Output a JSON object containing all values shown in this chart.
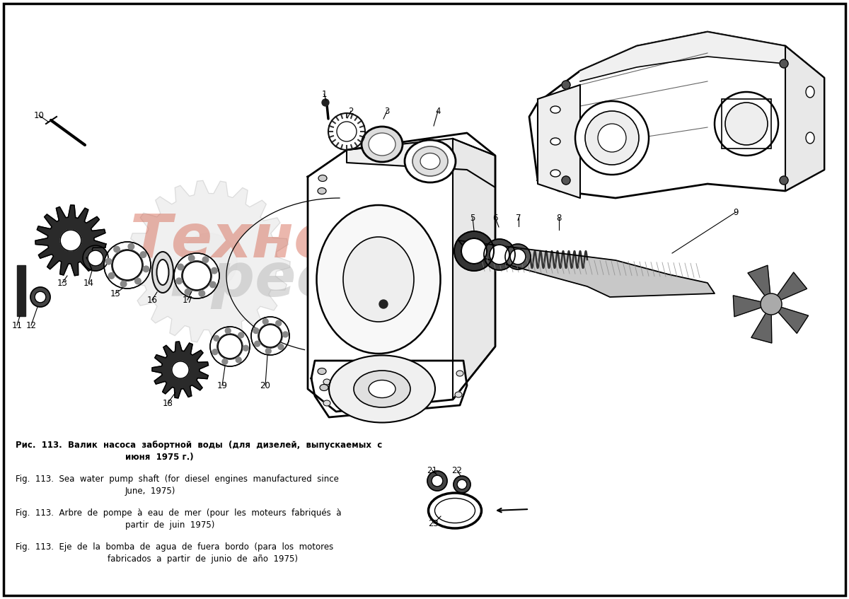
{
  "bg_color": "#ffffff",
  "border_color": "#000000",
  "border_lw": 2.5,
  "watermark_color1": "#d4604a",
  "watermark_color2": "#b0b0b0",
  "watermark_alpha": 0.45,
  "line_color": "#000000",
  "caption_font_size": 8.5,
  "label_font_size": 8.5,
  "caption_ru_line1": "Рис.  113.  Валик  насоса  забортной  воды  (для  дизелей,  выпускаемых  с",
  "caption_ru_line2": "июня 1975 г.)",
  "caption_en_line1": "Fig.  113.  Sea  water  pump  shaft  (for  diesel  engines  manufactured  since",
  "caption_en_line2": "June,  1975)",
  "caption_fr_line1": "Fig.  113.  Arbre  de  pompe  à  eau  de  mer  (pour  les  moteurs  fabriqués  à",
  "caption_fr_line2": "partir  de  juin  1975)",
  "caption_es_line1": "Fig.  113.  Eje  de  la  bomba  de  agua  de  fuera  bordo  (para  los  motores",
  "caption_es_line2": "fabricados  a  partir  de  junio  de  año  1975)"
}
